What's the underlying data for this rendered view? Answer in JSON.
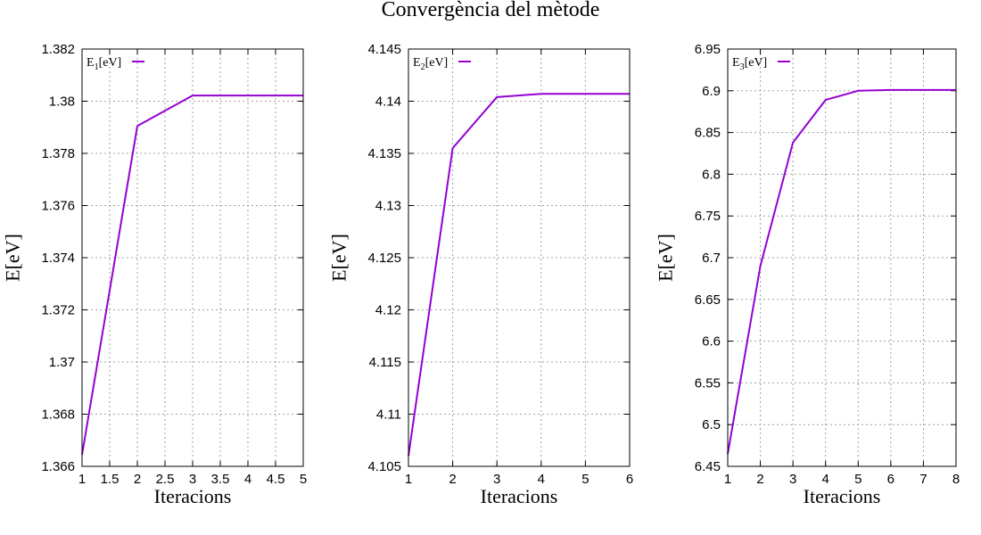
{
  "figure": {
    "title": "Convergència del mètode",
    "line_color": "#9400d3"
  },
  "chart_data": [
    {
      "type": "line",
      "legend": {
        "base": "E",
        "sub": "1",
        "suffix": "[eV]",
        "placement": "top-left"
      },
      "xlabel": "Iteracions",
      "ylabel": "E[eV]",
      "xlim": [
        1,
        5
      ],
      "ylim": [
        1.366,
        1.382
      ],
      "xticks": [
        "1",
        "1.5",
        "2",
        "2.5",
        "3",
        "3.5",
        "4",
        "4.5",
        "5"
      ],
      "yticks": [
        "1.366",
        "1.368",
        "1.37",
        "1.372",
        "1.374",
        "1.376",
        "1.378",
        "1.38",
        "1.382"
      ],
      "grid": true,
      "series": [
        {
          "x": [
            1,
            2,
            3,
            4,
            5
          ],
          "y": [
            1.36645,
            1.37905,
            1.38022,
            1.38022,
            1.38022
          ]
        }
      ]
    },
    {
      "type": "line",
      "legend": {
        "base": "E",
        "sub": "2",
        "suffix": "[eV]",
        "placement": "top-left"
      },
      "xlabel": "Iteracions",
      "ylabel": "E[eV]",
      "xlim": [
        1,
        6
      ],
      "ylim": [
        4.105,
        4.145
      ],
      "xticks": [
        "1",
        "2",
        "3",
        "4",
        "5",
        "6"
      ],
      "yticks": [
        "4.105",
        "4.11",
        "4.115",
        "4.12",
        "4.125",
        "4.13",
        "4.135",
        "4.14",
        "4.145"
      ],
      "grid": true,
      "series": [
        {
          "x": [
            1,
            2,
            3,
            4,
            5,
            6
          ],
          "y": [
            4.106,
            4.1355,
            4.1404,
            4.1407,
            4.1407,
            4.1407
          ]
        }
      ]
    },
    {
      "type": "line",
      "legend": {
        "base": "E",
        "sub": "3",
        "suffix": "[eV]",
        "placement": "top-left"
      },
      "xlabel": "Iteracions",
      "ylabel": "E[eV]",
      "xlim": [
        1,
        8
      ],
      "ylim": [
        6.45,
        6.95
      ],
      "xticks": [
        "1",
        "2",
        "3",
        "4",
        "5",
        "6",
        "7",
        "8"
      ],
      "yticks": [
        "6.45",
        "6.5",
        "6.55",
        "6.6",
        "6.65",
        "6.7",
        "6.75",
        "6.8",
        "6.85",
        "6.9",
        "6.95"
      ],
      "grid": true,
      "series": [
        {
          "x": [
            1,
            2,
            3,
            4,
            5,
            6,
            7,
            8
          ],
          "y": [
            6.465,
            6.69,
            6.838,
            6.889,
            6.9,
            6.901,
            6.901,
            6.901
          ]
        }
      ]
    }
  ]
}
